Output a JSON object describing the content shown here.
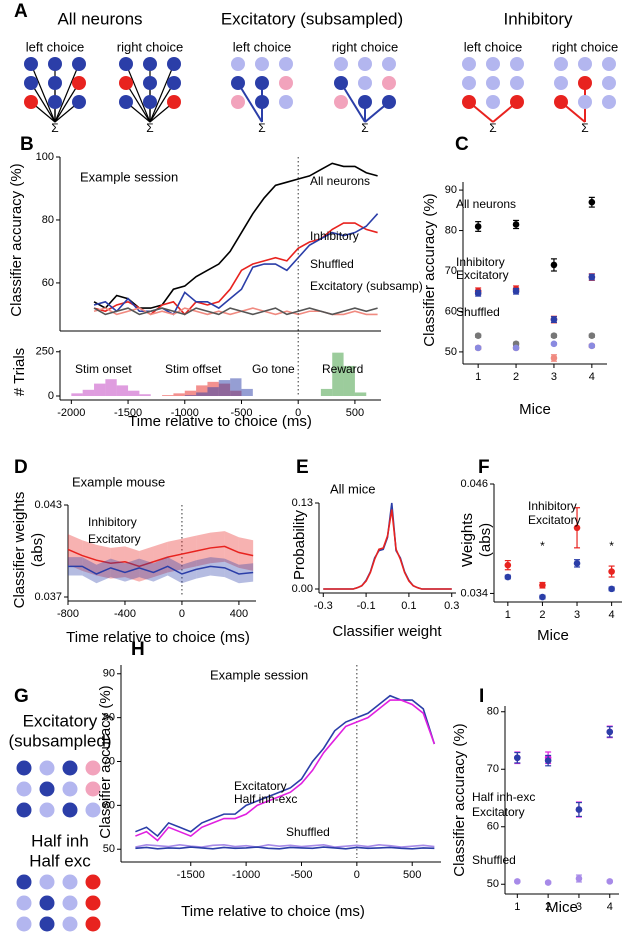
{
  "diagram_a": {
    "label": "A",
    "sum": "Σ",
    "groups": [
      {
        "title": "All neurons",
        "color": "#000000",
        "left": "left choice",
        "right": "right choice"
      },
      {
        "title": "Excitatory (subsampled)",
        "color": "#2b3ea8",
        "left": "left choice",
        "right": "right choice"
      },
      {
        "title": "Inhibitory",
        "color": "#e8231f",
        "left": "left choice",
        "right": "right choice"
      }
    ]
  },
  "diagram_g": {
    "label": "G",
    "groups": [
      {
        "title": [
          "Excitatory",
          "(subsampled)"
        ],
        "color": "#2b3ea8"
      },
      {
        "title": [
          "Half inh",
          "Half exc"
        ],
        "color": "#e020e0"
      }
    ]
  },
  "chart_data": [
    {
      "type": "line",
      "label": "B",
      "title": "Example session",
      "ylabel": "Classifier accuracy (%)",
      "xlim": [
        -2100,
        730
      ],
      "ylim": [
        46,
        100
      ],
      "yticks": [
        60,
        80,
        100
      ],
      "x": [
        -1800,
        -1700,
        -1600,
        -1500,
        -1400,
        -1300,
        -1200,
        -1100,
        -1000,
        -900,
        -800,
        -700,
        -600,
        -500,
        -400,
        -300,
        -200,
        -100,
        0,
        100,
        200,
        300,
        400,
        500,
        600,
        700
      ],
      "series": [
        {
          "name": "All neurons",
          "color": "#000000",
          "values": [
            54,
            52,
            56,
            55,
            52,
            52,
            53,
            58,
            59,
            62,
            64,
            66,
            70,
            76,
            82,
            87,
            91,
            92,
            93,
            94,
            96,
            98,
            97,
            97,
            95,
            94
          ]
        },
        {
          "name": "Inhibitory",
          "color": "#e8231f",
          "values": [
            52,
            51,
            53,
            54,
            52,
            50,
            53,
            54,
            50,
            54,
            53,
            54,
            58,
            64,
            66,
            67,
            68,
            67,
            71,
            73,
            74,
            77,
            79,
            79,
            77,
            76
          ]
        },
        {
          "name": "Excitatory (subsamp)",
          "color": "#2b3ea8",
          "values": [
            53,
            54,
            51,
            55,
            51,
            51,
            52,
            50,
            57,
            54,
            54,
            52,
            55,
            58,
            65,
            66,
            66,
            64,
            68,
            72,
            74,
            76,
            75,
            76,
            78,
            82
          ]
        },
        {
          "name": "Shuffled",
          "color": "#f08a80",
          "values": [
            51,
            52,
            50,
            51,
            52,
            50,
            51,
            50,
            52,
            51,
            50,
            51,
            50,
            51,
            52,
            51,
            50,
            51,
            50,
            51,
            51,
            50,
            50,
            51,
            50,
            50
          ]
        },
        {
          "color": "#555555",
          "values": [
            52,
            50,
            51,
            52,
            50,
            51,
            52,
            51,
            50,
            52,
            51,
            50,
            52,
            51,
            50,
            51,
            52,
            50,
            51,
            52,
            51,
            50,
            51,
            52,
            51,
            52
          ]
        }
      ]
    },
    {
      "type": "histogram",
      "ylabel": "# Trials",
      "xlabel": "Time relative to choice (ms)",
      "xlim": [
        -2100,
        730
      ],
      "ylim": [
        0,
        260
      ],
      "yticks": [
        0,
        250
      ],
      "xticks": [
        -2000,
        -1500,
        -1000,
        -500,
        0,
        500
      ],
      "series": [
        {
          "name": "Stim onset",
          "color": "#c03cc0",
          "bins": [
            -2000,
            -1900,
            -1800,
            -1700,
            -1600,
            -1500,
            -1400,
            -1300
          ],
          "values": [
            15,
            35,
            70,
            95,
            60,
            30,
            10
          ]
        },
        {
          "name": "Stim offset",
          "color": "#e8231f",
          "bins": [
            -1200,
            -1100,
            -1000,
            -900,
            -800,
            -700,
            -600,
            -500
          ],
          "values": [
            5,
            15,
            30,
            60,
            80,
            70,
            30
          ]
        },
        {
          "name": "Go tone",
          "color": "#2b3ea8",
          "bins": [
            -1000,
            -900,
            -800,
            -700,
            -600,
            -500,
            -400
          ],
          "values": [
            5,
            20,
            50,
            90,
            100,
            40
          ]
        },
        {
          "name": "Reward",
          "color": "#3a9a3a",
          "bins": [
            200,
            300,
            400,
            500,
            600
          ],
          "values": [
            40,
            245,
            170,
            20
          ]
        }
      ]
    },
    {
      "type": "errorbar",
      "label": "C",
      "xlabel": "Mice",
      "ylabel": "Classifier accuracy (%)",
      "x": [
        1,
        2,
        3,
        4
      ],
      "xlim": [
        0.6,
        4.4
      ],
      "xticks": [
        1,
        2,
        3,
        4
      ],
      "ylim": [
        48,
        92
      ],
      "yticks": [
        50,
        60,
        70,
        80,
        90
      ],
      "series": [
        {
          "name": "All neurons",
          "color": "#000000",
          "values": [
            81,
            81.5,
            71.5,
            87
          ],
          "errors": [
            1.2,
            1,
            1.5,
            1.2
          ]
        },
        {
          "name": "Inhibitory",
          "color": "#e8231f",
          "values": [
            65,
            65.5,
            58,
            68.5
          ],
          "errors": [
            0.8,
            0.8,
            0.8,
            0.8
          ]
        },
        {
          "name": "Excitatory",
          "color": "#2b3ea8",
          "values": [
            64.5,
            65,
            58,
            68.5
          ],
          "errors": [
            0.7,
            0.7,
            0.7,
            0.7
          ]
        },
        {
          "name": "Shuffled",
          "color": "#f08a80",
          "values": [
            51,
            51,
            48.5,
            51.5
          ],
          "errors": [
            0.4,
            0.4,
            0.8,
            0.4
          ]
        },
        {
          "color": "#777777",
          "values": [
            54,
            52,
            54,
            54
          ],
          "errors": [
            0.4,
            0.4,
            0.4,
            0.4
          ]
        },
        {
          "color": "#8a8ae0",
          "values": [
            51,
            51,
            52,
            51.5
          ],
          "errors": [
            0.3,
            0.3,
            0.3,
            0.3
          ]
        }
      ]
    },
    {
      "type": "band_line",
      "label": "D",
      "title": "Example mouse",
      "ylabel": [
        "Classifier weights",
        "(abs)"
      ],
      "xlabel": "Time relative to choice (ms)",
      "x": [
        -800,
        -700,
        -600,
        -500,
        -400,
        -300,
        -200,
        -100,
        0,
        100,
        200,
        300,
        400,
        500
      ],
      "xlim": [
        -800,
        520
      ],
      "xticks": [
        -800,
        -400,
        0,
        400
      ],
      "ylim": [
        0.037,
        0.043
      ],
      "yticks": [
        0.037,
        0.043
      ],
      "series": [
        {
          "name": "Inhibitory",
          "color": "#e8231f",
          "values": [
            0.0401,
            0.0397,
            0.0394,
            0.0392,
            0.0393,
            0.039,
            0.0393,
            0.0396,
            0.0398,
            0.04,
            0.0402,
            0.0403,
            0.0399,
            0.0397
          ],
          "errors": [
            0.001,
            0.001,
            0.001,
            0.001,
            0.001,
            0.001,
            0.001,
            0.001,
            0.001,
            0.001,
            0.001,
            0.001,
            0.001,
            0.001
          ]
        },
        {
          "name": "Excitatory",
          "color": "#2b3ea8",
          "values": [
            0.039,
            0.039,
            0.0385,
            0.0389,
            0.0386,
            0.0389,
            0.0386,
            0.039,
            0.0385,
            0.0388,
            0.039,
            0.0389,
            0.0385,
            0.0386
          ],
          "errors": [
            0.0006,
            0.0006,
            0.0006,
            0.0006,
            0.0006,
            0.0006,
            0.0006,
            0.0006,
            0.0006,
            0.0006,
            0.0006,
            0.0006,
            0.0006,
            0.0006
          ]
        }
      ]
    },
    {
      "type": "line",
      "label": "E",
      "title": "All mice",
      "ylabel": "Probability",
      "xlabel": "Classifier weight",
      "x": [
        -0.3,
        -0.28,
        -0.26,
        -0.24,
        -0.22,
        -0.2,
        -0.18,
        -0.16,
        -0.14,
        -0.12,
        -0.1,
        -0.08,
        -0.06,
        -0.04,
        -0.02,
        0,
        0.02,
        0.04,
        0.06,
        0.08,
        0.1,
        0.12,
        0.14,
        0.16,
        0.18,
        0.2,
        0.22,
        0.24,
        0.26,
        0.28,
        0.3
      ],
      "xlim": [
        -0.32,
        0.32
      ],
      "xticks": [
        -0.3,
        -0.1,
        0.1,
        0.3
      ],
      "ylim": [
        0,
        0.13
      ],
      "yticks": [
        {
          "value": 0,
          "label": "0.00"
        },
        0.13
      ],
      "series": [
        {
          "color": "#2b3ea8",
          "values": [
            0,
            0,
            0,
            0,
            0,
            0,
            0,
            0,
            0.002,
            0.005,
            0.013,
            0.026,
            0.047,
            0.058,
            0.06,
            0.078,
            0.13,
            0.058,
            0.047,
            0.026,
            0.013,
            0.005,
            0.002,
            0,
            0,
            0,
            0,
            0,
            0,
            0,
            0
          ]
        },
        {
          "color": "#e8231f",
          "values": [
            0,
            0,
            0,
            0,
            0,
            0,
            0,
            0,
            0.002,
            0.005,
            0.012,
            0.025,
            0.045,
            0.06,
            0.062,
            0.08,
            0.12,
            0.06,
            0.045,
            0.025,
            0.012,
            0.005,
            0.002,
            0,
            0,
            0,
            0,
            0,
            0,
            0,
            0
          ]
        }
      ]
    },
    {
      "type": "errorbar",
      "label": "F",
      "xlabel": "Mice",
      "ylabel": [
        "Weights",
        "(abs)"
      ],
      "x": [
        1,
        2,
        3,
        4
      ],
      "xlim": [
        0.6,
        4.3
      ],
      "xticks": [
        1,
        2,
        3,
        4
      ],
      "ylim": [
        0.0335,
        0.046
      ],
      "yticks": [
        0.034,
        0.046
      ],
      "annotations": [
        {
          "text": "*",
          "x": 2
        },
        {
          "text": "*",
          "x": 4
        }
      ],
      "series": [
        {
          "name": "Inhibitory",
          "color": "#e8231f",
          "values": [
            0.0371,
            0.0349,
            0.0412,
            0.0364
          ],
          "errors": [
            0.0005,
            0.0003,
            0.0022,
            0.0006
          ]
        },
        {
          "name": "Excitatory",
          "color": "#2b3ea8",
          "values": [
            0.0358,
            0.0336,
            0.0373,
            0.0345
          ],
          "errors": [
            0.0002,
            0.0002,
            0.0004,
            0.0002
          ]
        }
      ]
    },
    {
      "type": "line",
      "label": "H",
      "title": "Example session",
      "ylabel": "Classifier accuracy (%)",
      "xlabel": "Time relative to choice (ms)",
      "x": [
        -2000,
        -1900,
        -1800,
        -1700,
        -1600,
        -1500,
        -1400,
        -1300,
        -1200,
        -1100,
        -1000,
        -900,
        -800,
        -700,
        -600,
        -500,
        -400,
        -300,
        -200,
        -100,
        0,
        100,
        200,
        300,
        400,
        500,
        600,
        700
      ],
      "xlim": [
        -2130,
        760
      ],
      "xticks": [
        -1500,
        -1000,
        -500,
        0,
        500
      ],
      "ylim": [
        48,
        92
      ],
      "yticks": [
        50,
        60,
        70,
        80,
        90
      ],
      "series": [
        {
          "name": "Excitatory",
          "color": "#2b3ea8",
          "values": [
            54,
            55,
            53,
            56,
            55,
            54,
            56,
            57,
            58,
            58,
            60,
            61,
            62,
            63,
            64,
            66,
            70,
            73,
            77,
            79,
            80,
            81,
            83,
            85,
            84,
            84,
            82,
            74
          ]
        },
        {
          "name": "Half inh-exc",
          "color": "#e020e0",
          "values": [
            53,
            54,
            52,
            55,
            54,
            53,
            55,
            56,
            57,
            57,
            58,
            60,
            61,
            62,
            63,
            65,
            68,
            72,
            75,
            78,
            79,
            80,
            82,
            84,
            84,
            83,
            81,
            74
          ]
        },
        {
          "name": "Shuffled",
          "color": "#a78ae8",
          "values": [
            50.5,
            51,
            50.8,
            50.6,
            51,
            50.7,
            50.5,
            50.9,
            51,
            50.6,
            50.8,
            50.5,
            51,
            50.7,
            50.9,
            50.6,
            50.8,
            51,
            50.5,
            50.7,
            50.9,
            50.6,
            51,
            50.8,
            50.5,
            50.7,
            50.9,
            50.6
          ]
        },
        {
          "color": "#2b3ea8",
          "values": [
            50.2,
            50.4,
            50.1,
            50.3,
            50.2,
            50.5,
            50.3,
            50.1,
            50.4,
            50.2,
            50.3,
            50.5,
            50.2,
            50.1,
            50.4,
            50.3,
            50.2,
            50.5,
            50.3,
            50.1,
            50.4,
            50.2,
            50.3,
            50.4,
            50.2,
            50.1,
            50.3,
            50.2
          ]
        }
      ]
    },
    {
      "type": "errorbar",
      "label": "I",
      "xlabel": "Mice",
      "ylabel": "Classifier accuracy (%)",
      "x": [
        1,
        2,
        3,
        4
      ],
      "xlim": [
        0.6,
        4.3
      ],
      "xticks": [
        1,
        2,
        3,
        4
      ],
      "ylim": [
        49,
        81
      ],
      "yticks": [
        50,
        60,
        70,
        80
      ],
      "series": [
        {
          "name": "Half inh-exc",
          "color": "#e020e0",
          "values": [
            72,
            72,
            63,
            76.5
          ],
          "errors": [
            1,
            1,
            1.3,
            1
          ]
        },
        {
          "name": "Excitatory",
          "color": "#2b3ea8",
          "values": [
            72,
            71.5,
            63,
            76.5
          ],
          "errors": [
            0.9,
            0.9,
            1.2,
            0.9
          ]
        },
        {
          "name": "Shuffled",
          "color": "#a78ae8",
          "values": [
            50.5,
            50.3,
            51,
            50.5
          ],
          "errors": [
            0.2,
            0.2,
            0.6,
            0.2
          ]
        }
      ]
    }
  ]
}
